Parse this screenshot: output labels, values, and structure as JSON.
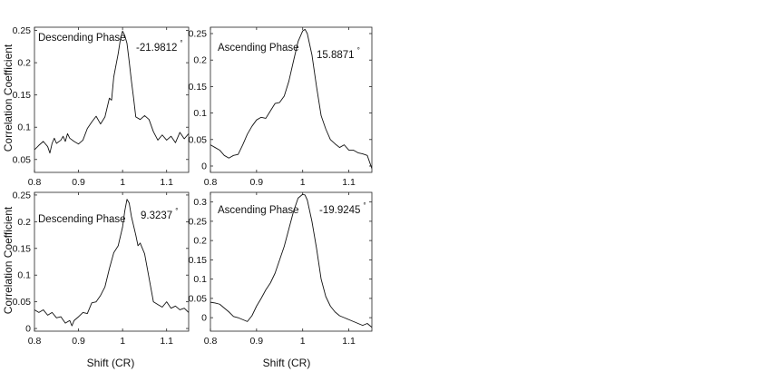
{
  "figure": {
    "ylabel": "Correlation Coefficient",
    "xlabel": "Shift (CR)"
  },
  "chart_data": [
    {
      "type": "line",
      "panel": "top-left",
      "phase_label": "Descending Phase",
      "angle_label": "-21.9812",
      "angle_unit": "°",
      "xlim": [
        0.8,
        1.15
      ],
      "ylim": [
        0.03,
        0.255
      ],
      "xticks": [
        "0.8",
        "0.9",
        "1",
        "1.1"
      ],
      "yticks": [
        "0.05",
        "0.1",
        "0.15",
        "0.2",
        "0.25"
      ],
      "xtick_values": [
        0.8,
        0.9,
        1.0,
        1.1
      ],
      "ytick_values": [
        0.05,
        0.1,
        0.15,
        0.2,
        0.25
      ],
      "show_x_ticklabels": true,
      "series": [
        {
          "x": [
            0.8,
            0.81,
            0.82,
            0.83,
            0.835,
            0.84,
            0.845,
            0.85,
            0.86,
            0.865,
            0.87,
            0.875,
            0.88,
            0.89,
            0.9,
            0.91,
            0.92,
            0.93,
            0.94,
            0.95,
            0.96,
            0.97,
            0.975,
            0.98,
            0.99,
            0.995,
            1.0,
            1.005,
            1.01,
            1.015,
            1.02,
            1.025,
            1.03,
            1.04,
            1.05,
            1.06,
            1.07,
            1.08,
            1.09,
            1.1,
            1.11,
            1.12,
            1.13,
            1.14,
            1.15
          ],
          "y": [
            0.065,
            0.072,
            0.078,
            0.07,
            0.06,
            0.075,
            0.083,
            0.075,
            0.08,
            0.086,
            0.078,
            0.09,
            0.083,
            0.078,
            0.074,
            0.08,
            0.098,
            0.108,
            0.117,
            0.105,
            0.116,
            0.145,
            0.142,
            0.178,
            0.214,
            0.236,
            0.249,
            0.242,
            0.23,
            0.202,
            0.172,
            0.145,
            0.116,
            0.112,
            0.118,
            0.112,
            0.093,
            0.08,
            0.088,
            0.08,
            0.086,
            0.076,
            0.092,
            0.082,
            0.09
          ]
        }
      ]
    },
    {
      "type": "line",
      "panel": "top-right",
      "phase_label": "Ascending Phase",
      "angle_label": "15.8871",
      "angle_unit": "°",
      "xlim": [
        0.8,
        1.15
      ],
      "ylim": [
        -0.012,
        0.262
      ],
      "xticks": [
        "0.8",
        "0.9",
        "1",
        "1.1"
      ],
      "yticks": [
        "0",
        "0.05",
        "0.1",
        "0.15",
        "0.2",
        "0.25"
      ],
      "xtick_values": [
        0.8,
        0.9,
        1.0,
        1.1
      ],
      "ytick_values": [
        0,
        0.05,
        0.1,
        0.15,
        0.2,
        0.25
      ],
      "show_x_ticklabels": true,
      "series": [
        {
          "x": [
            0.8,
            0.81,
            0.82,
            0.83,
            0.84,
            0.85,
            0.86,
            0.87,
            0.88,
            0.89,
            0.9,
            0.91,
            0.92,
            0.93,
            0.94,
            0.95,
            0.96,
            0.97,
            0.98,
            0.99,
            1.0,
            1.005,
            1.01,
            1.02,
            1.03,
            1.04,
            1.05,
            1.06,
            1.07,
            1.08,
            1.09,
            1.1,
            1.11,
            1.12,
            1.13,
            1.14,
            1.15
          ],
          "y": [
            0.04,
            0.035,
            0.03,
            0.02,
            0.015,
            0.02,
            0.022,
            0.04,
            0.06,
            0.075,
            0.087,
            0.092,
            0.09,
            0.104,
            0.118,
            0.12,
            0.132,
            0.16,
            0.198,
            0.235,
            0.255,
            0.258,
            0.25,
            0.21,
            0.15,
            0.095,
            0.07,
            0.05,
            0.042,
            0.035,
            0.04,
            0.03,
            0.03,
            0.025,
            0.023,
            0.02,
            -0.005
          ]
        }
      ]
    },
    {
      "type": "line",
      "panel": "bottom-left",
      "phase_label": "Descending Phase",
      "angle_label": "9.3237",
      "angle_unit": "°",
      "xlim": [
        0.8,
        1.15
      ],
      "ylim": [
        -0.005,
        0.255
      ],
      "xticks": [
        "0.8",
        "0.9",
        "1",
        "1.1"
      ],
      "yticks": [
        "0",
        "0.05",
        "0.1",
        "0.15",
        "0.2",
        "0.25"
      ],
      "xtick_values": [
        0.8,
        0.9,
        1.0,
        1.1
      ],
      "ytick_values": [
        0,
        0.05,
        0.1,
        0.15,
        0.2,
        0.25
      ],
      "show_x_ticklabels": true,
      "series": [
        {
          "x": [
            0.8,
            0.81,
            0.82,
            0.83,
            0.84,
            0.85,
            0.86,
            0.87,
            0.88,
            0.885,
            0.89,
            0.9,
            0.91,
            0.92,
            0.93,
            0.94,
            0.95,
            0.96,
            0.97,
            0.98,
            0.99,
            1.0,
            1.005,
            1.01,
            1.015,
            1.02,
            1.03,
            1.035,
            1.04,
            1.05,
            1.06,
            1.07,
            1.08,
            1.09,
            1.1,
            1.11,
            1.12,
            1.13,
            1.14,
            1.15
          ],
          "y": [
            0.035,
            0.03,
            0.035,
            0.025,
            0.03,
            0.02,
            0.022,
            0.01,
            0.015,
            0.005,
            0.015,
            0.022,
            0.03,
            0.028,
            0.048,
            0.05,
            0.062,
            0.078,
            0.112,
            0.142,
            0.155,
            0.19,
            0.22,
            0.242,
            0.235,
            0.21,
            0.175,
            0.155,
            0.16,
            0.14,
            0.095,
            0.05,
            0.045,
            0.04,
            0.05,
            0.038,
            0.042,
            0.035,
            0.038,
            0.03
          ]
        }
      ]
    },
    {
      "type": "line",
      "panel": "bottom-right",
      "phase_label": "Ascending Phase",
      "angle_label": "-19.9245",
      "angle_unit": "°",
      "xlim": [
        0.8,
        1.15
      ],
      "ylim": [
        -0.035,
        0.325
      ],
      "xticks": [
        "0.8",
        "0.9",
        "1",
        "1.1"
      ],
      "yticks": [
        "0",
        "0.05",
        "0.1",
        "0.15",
        "0.2",
        "0.25",
        "0.3"
      ],
      "xtick_values": [
        0.8,
        0.9,
        1.0,
        1.1
      ],
      "ytick_values": [
        0,
        0.05,
        0.1,
        0.15,
        0.2,
        0.25,
        0.3
      ],
      "show_x_ticklabels": true,
      "series": [
        {
          "x": [
            0.8,
            0.81,
            0.82,
            0.83,
            0.84,
            0.85,
            0.86,
            0.87,
            0.88,
            0.89,
            0.9,
            0.91,
            0.92,
            0.93,
            0.94,
            0.95,
            0.96,
            0.97,
            0.98,
            0.99,
            1.0,
            1.005,
            1.01,
            1.02,
            1.03,
            1.04,
            1.05,
            1.06,
            1.07,
            1.08,
            1.09,
            1.1,
            1.11,
            1.12,
            1.13,
            1.14,
            1.15
          ],
          "y": [
            0.04,
            0.038,
            0.035,
            0.025,
            0.015,
            0.003,
            0.0,
            -0.005,
            -0.01,
            0.005,
            0.03,
            0.05,
            0.072,
            0.09,
            0.115,
            0.15,
            0.185,
            0.23,
            0.275,
            0.31,
            0.32,
            0.318,
            0.305,
            0.25,
            0.18,
            0.1,
            0.055,
            0.03,
            0.015,
            0.005,
            0.0,
            -0.005,
            -0.01,
            -0.015,
            -0.02,
            -0.015,
            -0.025
          ]
        }
      ]
    }
  ]
}
